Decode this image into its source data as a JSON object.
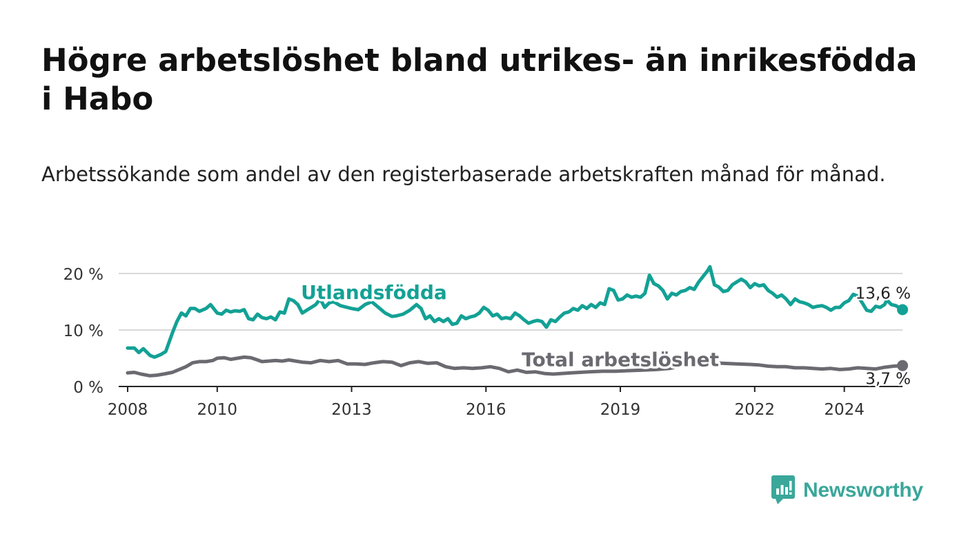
{
  "title": "Högre arbetslöshet bland utrikes- än inrikesfödda i Habo",
  "subtitle": "Arbetssökande som andel av den registerbaserade arbetskraften månad för månad.",
  "logo": {
    "text": "Newsworthy",
    "icon": "bar-chart-logo-icon",
    "color": "#3aa79a"
  },
  "chart_data": {
    "type": "line",
    "title": "Högre arbetslöshet bland utrikes- än inrikesfödda i Habo",
    "xlabel": "",
    "ylabel": "",
    "xlim": [
      2007.8,
      2025.3
    ],
    "ylim": [
      0,
      20
    ],
    "x_ticks": [
      {
        "value": 2008,
        "label": "2008"
      },
      {
        "value": 2010,
        "label": "2010"
      },
      {
        "value": 2013,
        "label": "2013"
      },
      {
        "value": 2016,
        "label": "2016"
      },
      {
        "value": 2019,
        "label": "2019"
      },
      {
        "value": 2022,
        "label": "2022"
      },
      {
        "value": 2024,
        "label": "2024"
      }
    ],
    "y_ticks": [
      {
        "value": 0,
        "label": "0 %"
      },
      {
        "value": 10,
        "label": "10 %"
      },
      {
        "value": 20,
        "label": "20 %"
      }
    ],
    "grid": true,
    "series": [
      {
        "name": "Utlandsfödda",
        "color": "#13a195",
        "end_label": "13,6 %",
        "label_anchor": {
          "x": 2013.5,
          "y": 15.5
        },
        "points": [
          [
            2008.0,
            6.8
          ],
          [
            2008.15,
            6.8
          ],
          [
            2008.25,
            6.0
          ],
          [
            2008.35,
            6.7
          ],
          [
            2008.5,
            5.5
          ],
          [
            2008.6,
            5.2
          ],
          [
            2008.75,
            5.7
          ],
          [
            2008.85,
            6.2
          ],
          [
            2009.0,
            9.5
          ],
          [
            2009.1,
            11.5
          ],
          [
            2009.2,
            13.0
          ],
          [
            2009.3,
            12.5
          ],
          [
            2009.4,
            13.8
          ],
          [
            2009.5,
            13.8
          ],
          [
            2009.6,
            13.3
          ],
          [
            2009.75,
            13.8
          ],
          [
            2009.85,
            14.5
          ],
          [
            2010.0,
            13.0
          ],
          [
            2010.1,
            12.8
          ],
          [
            2010.2,
            13.5
          ],
          [
            2010.3,
            13.2
          ],
          [
            2010.4,
            13.4
          ],
          [
            2010.5,
            13.3
          ],
          [
            2010.6,
            13.6
          ],
          [
            2010.7,
            12.0
          ],
          [
            2010.8,
            11.8
          ],
          [
            2010.9,
            12.8
          ],
          [
            2011.0,
            12.2
          ],
          [
            2011.1,
            12.0
          ],
          [
            2011.2,
            12.3
          ],
          [
            2011.3,
            11.8
          ],
          [
            2011.4,
            13.2
          ],
          [
            2011.5,
            13.0
          ],
          [
            2011.6,
            15.5
          ],
          [
            2011.7,
            15.2
          ],
          [
            2011.8,
            14.5
          ],
          [
            2011.9,
            13.0
          ],
          [
            2012.0,
            13.5
          ],
          [
            2012.1,
            14.0
          ],
          [
            2012.2,
            14.5
          ],
          [
            2012.3,
            15.5
          ],
          [
            2012.4,
            14.0
          ],
          [
            2012.5,
            14.8
          ],
          [
            2012.6,
            15.0
          ],
          [
            2012.75,
            14.3
          ],
          [
            2013.0,
            13.8
          ],
          [
            2013.15,
            13.6
          ],
          [
            2013.3,
            14.5
          ],
          [
            2013.45,
            15.0
          ],
          [
            2013.6,
            14.0
          ],
          [
            2013.75,
            13.0
          ],
          [
            2013.9,
            12.4
          ],
          [
            2014.0,
            12.5
          ],
          [
            2014.15,
            12.8
          ],
          [
            2014.3,
            13.5
          ],
          [
            2014.45,
            14.5
          ],
          [
            2014.55,
            13.8
          ],
          [
            2014.65,
            12.0
          ],
          [
            2014.75,
            12.5
          ],
          [
            2014.85,
            11.5
          ],
          [
            2014.95,
            12.0
          ],
          [
            2015.05,
            11.5
          ],
          [
            2015.15,
            12.0
          ],
          [
            2015.25,
            11.0
          ],
          [
            2015.35,
            11.2
          ],
          [
            2015.45,
            12.5
          ],
          [
            2015.55,
            12.0
          ],
          [
            2015.65,
            12.3
          ],
          [
            2015.75,
            12.5
          ],
          [
            2015.85,
            13.0
          ],
          [
            2015.95,
            14.0
          ],
          [
            2016.05,
            13.5
          ],
          [
            2016.15,
            12.5
          ],
          [
            2016.25,
            12.8
          ],
          [
            2016.35,
            12.0
          ],
          [
            2016.45,
            12.2
          ],
          [
            2016.55,
            12.0
          ],
          [
            2016.65,
            13.0
          ],
          [
            2016.75,
            12.5
          ],
          [
            2016.85,
            11.8
          ],
          [
            2016.95,
            11.2
          ],
          [
            2017.05,
            11.5
          ],
          [
            2017.15,
            11.7
          ],
          [
            2017.25,
            11.5
          ],
          [
            2017.35,
            10.5
          ],
          [
            2017.45,
            11.8
          ],
          [
            2017.55,
            11.5
          ],
          [
            2017.65,
            12.3
          ],
          [
            2017.75,
            13.0
          ],
          [
            2017.85,
            13.2
          ],
          [
            2017.95,
            13.8
          ],
          [
            2018.05,
            13.5
          ],
          [
            2018.15,
            14.3
          ],
          [
            2018.25,
            13.8
          ],
          [
            2018.35,
            14.5
          ],
          [
            2018.45,
            14.0
          ],
          [
            2018.55,
            14.8
          ],
          [
            2018.65,
            14.5
          ],
          [
            2018.75,
            17.3
          ],
          [
            2018.85,
            17.0
          ],
          [
            2018.95,
            15.3
          ],
          [
            2019.05,
            15.5
          ],
          [
            2019.15,
            16.2
          ],
          [
            2019.25,
            15.8
          ],
          [
            2019.35,
            16.0
          ],
          [
            2019.45,
            15.8
          ],
          [
            2019.55,
            16.5
          ],
          [
            2019.65,
            19.7
          ],
          [
            2019.75,
            18.2
          ],
          [
            2019.85,
            17.8
          ],
          [
            2019.95,
            17.0
          ],
          [
            2020.05,
            15.5
          ],
          [
            2020.15,
            16.5
          ],
          [
            2020.25,
            16.2
          ],
          [
            2020.35,
            16.8
          ],
          [
            2020.45,
            17.0
          ],
          [
            2020.55,
            17.5
          ],
          [
            2020.65,
            17.2
          ],
          [
            2020.75,
            18.5
          ],
          [
            2020.85,
            19.5
          ],
          [
            2020.95,
            20.5
          ],
          [
            2021.0,
            21.2
          ],
          [
            2021.1,
            18.0
          ],
          [
            2021.2,
            17.6
          ],
          [
            2021.3,
            16.8
          ],
          [
            2021.4,
            17.0
          ],
          [
            2021.5,
            18.0
          ],
          [
            2021.6,
            18.5
          ],
          [
            2021.7,
            19.0
          ],
          [
            2021.8,
            18.5
          ],
          [
            2021.9,
            17.5
          ],
          [
            2022.0,
            18.2
          ],
          [
            2022.1,
            17.8
          ],
          [
            2022.2,
            18.0
          ],
          [
            2022.3,
            17.0
          ],
          [
            2022.4,
            16.5
          ],
          [
            2022.5,
            15.8
          ],
          [
            2022.6,
            16.2
          ],
          [
            2022.7,
            15.5
          ],
          [
            2022.8,
            14.5
          ],
          [
            2022.9,
            15.5
          ],
          [
            2023.0,
            15.0
          ],
          [
            2023.1,
            14.8
          ],
          [
            2023.2,
            14.5
          ],
          [
            2023.3,
            14.0
          ],
          [
            2023.4,
            14.2
          ],
          [
            2023.5,
            14.3
          ],
          [
            2023.6,
            14.0
          ],
          [
            2023.7,
            13.5
          ],
          [
            2023.8,
            14.0
          ],
          [
            2023.9,
            14.0
          ],
          [
            2024.0,
            14.8
          ],
          [
            2024.1,
            15.2
          ],
          [
            2024.2,
            16.3
          ],
          [
            2024.3,
            16.0
          ],
          [
            2024.4,
            14.8
          ],
          [
            2024.5,
            13.5
          ],
          [
            2024.6,
            13.3
          ],
          [
            2024.7,
            14.2
          ],
          [
            2024.8,
            14.0
          ],
          [
            2024.9,
            14.5
          ],
          [
            2024.95,
            15.3
          ],
          [
            2025.05,
            14.5
          ],
          [
            2025.15,
            14.3
          ],
          [
            2025.3,
            13.6
          ]
        ]
      },
      {
        "name": "Total arbetslöshet",
        "color": "#6b6a70",
        "end_label": "3,7 %",
        "label_anchor": {
          "x": 2019.0,
          "y": 3.6
        },
        "points": [
          [
            2008.0,
            2.4
          ],
          [
            2008.15,
            2.5
          ],
          [
            2008.3,
            2.2
          ],
          [
            2008.5,
            1.9
          ],
          [
            2008.65,
            2.0
          ],
          [
            2008.8,
            2.2
          ],
          [
            2009.0,
            2.5
          ],
          [
            2009.15,
            3.0
          ],
          [
            2009.3,
            3.5
          ],
          [
            2009.45,
            4.2
          ],
          [
            2009.6,
            4.4
          ],
          [
            2009.75,
            4.4
          ],
          [
            2009.9,
            4.6
          ],
          [
            2010.0,
            5.0
          ],
          [
            2010.15,
            5.1
          ],
          [
            2010.3,
            4.8
          ],
          [
            2010.45,
            5.0
          ],
          [
            2010.6,
            5.2
          ],
          [
            2010.75,
            5.1
          ],
          [
            2010.9,
            4.7
          ],
          [
            2011.0,
            4.4
          ],
          [
            2011.15,
            4.5
          ],
          [
            2011.3,
            4.6
          ],
          [
            2011.45,
            4.5
          ],
          [
            2011.6,
            4.7
          ],
          [
            2011.75,
            4.5
          ],
          [
            2011.9,
            4.3
          ],
          [
            2012.1,
            4.2
          ],
          [
            2012.3,
            4.6
          ],
          [
            2012.5,
            4.4
          ],
          [
            2012.7,
            4.6
          ],
          [
            2012.9,
            4.0
          ],
          [
            2013.1,
            4.0
          ],
          [
            2013.3,
            3.9
          ],
          [
            2013.5,
            4.2
          ],
          [
            2013.7,
            4.4
          ],
          [
            2013.9,
            4.3
          ],
          [
            2014.1,
            3.7
          ],
          [
            2014.3,
            4.2
          ],
          [
            2014.5,
            4.4
          ],
          [
            2014.7,
            4.1
          ],
          [
            2014.9,
            4.2
          ],
          [
            2015.1,
            3.5
          ],
          [
            2015.3,
            3.2
          ],
          [
            2015.5,
            3.3
          ],
          [
            2015.7,
            3.2
          ],
          [
            2015.9,
            3.3
          ],
          [
            2016.1,
            3.5
          ],
          [
            2016.3,
            3.2
          ],
          [
            2016.5,
            2.6
          ],
          [
            2016.7,
            2.9
          ],
          [
            2016.9,
            2.5
          ],
          [
            2017.1,
            2.6
          ],
          [
            2017.3,
            2.3
          ],
          [
            2017.5,
            2.2
          ],
          [
            2017.7,
            2.3
          ],
          [
            2017.9,
            2.4
          ],
          [
            2018.1,
            2.5
          ],
          [
            2018.3,
            2.6
          ],
          [
            2018.6,
            2.7
          ],
          [
            2018.9,
            2.7
          ],
          [
            2019.2,
            2.8
          ],
          [
            2019.5,
            2.9
          ],
          [
            2019.8,
            3.0
          ],
          [
            2020.1,
            3.2
          ],
          [
            2020.4,
            3.7
          ],
          [
            2020.7,
            4.0
          ],
          [
            2021.0,
            4.2
          ],
          [
            2021.3,
            4.1
          ],
          [
            2021.6,
            4.0
          ],
          [
            2021.9,
            3.9
          ],
          [
            2022.1,
            3.8
          ],
          [
            2022.3,
            3.6
          ],
          [
            2022.5,
            3.5
          ],
          [
            2022.7,
            3.5
          ],
          [
            2022.9,
            3.3
          ],
          [
            2023.1,
            3.3
          ],
          [
            2023.3,
            3.2
          ],
          [
            2023.5,
            3.1
          ],
          [
            2023.7,
            3.2
          ],
          [
            2023.9,
            3.0
          ],
          [
            2024.1,
            3.1
          ],
          [
            2024.3,
            3.3
          ],
          [
            2024.5,
            3.2
          ],
          [
            2024.7,
            3.1
          ],
          [
            2024.9,
            3.4
          ],
          [
            2025.1,
            3.6
          ],
          [
            2025.3,
            3.7
          ]
        ]
      }
    ]
  }
}
